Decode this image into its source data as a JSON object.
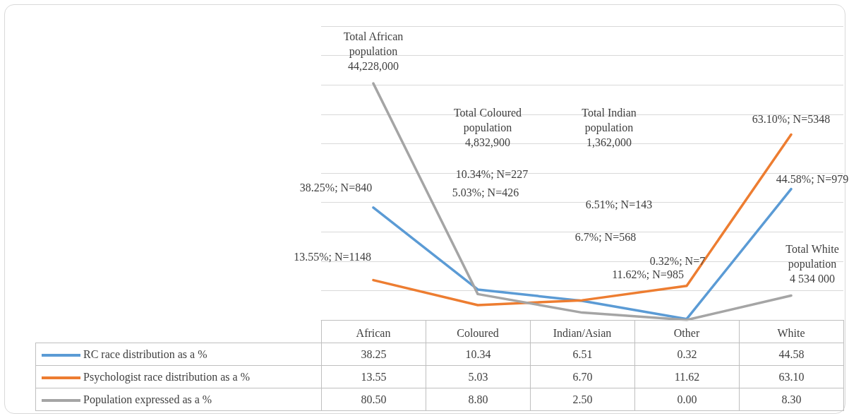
{
  "chart_data": {
    "type": "line",
    "categories": [
      "African",
      "Coloured",
      "Indian/Asian",
      "Other",
      "White"
    ],
    "series": [
      {
        "name": "RC race distribution as a %",
        "color": "#5b9bd5",
        "values": [
          38.25,
          10.34,
          6.51,
          0.32,
          44.58
        ],
        "value_labels": [
          "38.25",
          "10.34",
          "6.51",
          "0.32",
          "44.58"
        ]
      },
      {
        "name": "Psychologist race distribution as a %",
        "color": "#ed7d31",
        "values": [
          13.55,
          5.03,
          6.7,
          11.62,
          63.1
        ],
        "value_labels": [
          "13.55",
          "5.03",
          "6.70",
          "11.62",
          "63.10"
        ]
      },
      {
        "name": "Population expressed as a %",
        "color": "#a5a5a5",
        "values": [
          80.5,
          8.8,
          2.5,
          0,
          8.3
        ],
        "value_labels": [
          "80.50",
          "8.80",
          "2.50",
          "0.00",
          "8.30"
        ]
      }
    ],
    "annotations": [
      {
        "text": "38.25%; N=840",
        "x": "African",
        "y": 38.25
      },
      "10.34%; N=227",
      "6.51%; N=143",
      "0.32%; N=7",
      {
        "text": "44.58%; N=979",
        "x": "White",
        "y": 44.58
      },
      {
        "text": "13.55%; N=1148",
        "x": "African",
        "y": 13.55
      },
      "5.03%; N=426",
      "6.7%; N=568",
      {
        "text": "11.62%; N=985",
        "x": "Other",
        "y": 11.62
      },
      {
        "text": "63.10%; N=5348",
        "x": "White",
        "y": 63.1
      },
      {
        "text": "Total African population 44,228,000",
        "x": "African",
        "y": 80.5
      },
      "Total Coloured population 4,832,900",
      "Total Indian population 1,362,000",
      {
        "text": "Total White population 4 534 000",
        "x": "White",
        "y": 8.3
      }
    ],
    "ylim": [
      0,
      100
    ],
    "yticks": [
      {
        "value": 0,
        "label": null
      },
      {
        "value": 10,
        "label": null
      },
      {
        "value": 20,
        "label": null
      },
      {
        "value": 30,
        "label": null
      },
      {
        "value": 40,
        "label": null
      },
      {
        "value": 50,
        "label": null
      },
      {
        "value": 60,
        "label": null
      },
      {
        "value": 70,
        "label": null
      },
      {
        "value": 80,
        "label": null
      },
      {
        "value": 90,
        "label": null
      },
      {
        "value": 100,
        "label": null
      }
    ],
    "tick_labels": "x",
    "grid": "y",
    "legend": "bottom",
    "marker": "none",
    "line_style": "solid",
    "data_labels": true
  }
}
